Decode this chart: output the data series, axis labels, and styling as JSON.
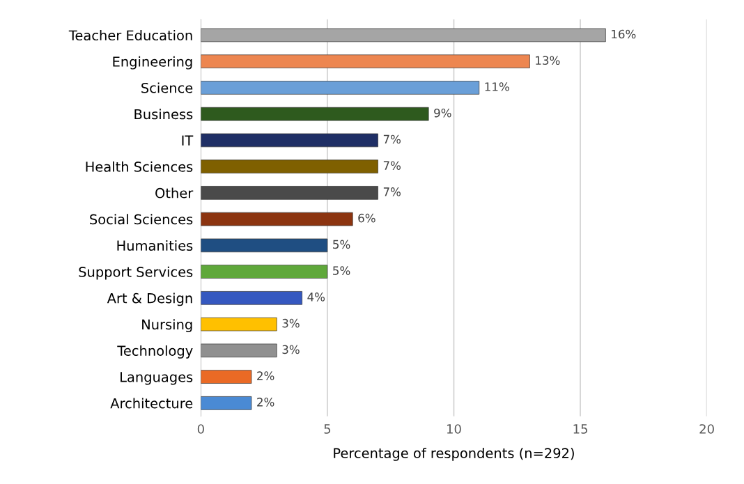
{
  "chart_data": {
    "type": "bar",
    "orientation": "horizontal",
    "xlabel": "Percentage of respondents (n=292)",
    "categories": [
      "Teacher Education",
      "Engineering",
      "Science",
      "Business",
      "IT",
      "Health Sciences",
      "Other",
      "Social Sciences",
      "Humanities",
      "Support Services",
      "Art & Design",
      "Nursing",
      "Technology",
      "Languages",
      "Architecture"
    ],
    "values": [
      16,
      13,
      11,
      9,
      7,
      7,
      7,
      6,
      5,
      5,
      4,
      3,
      3,
      2,
      2
    ],
    "colors": [
      "#a5a5a5",
      "#ed8650",
      "#6a9fd8",
      "#2e5a1e",
      "#1f2f66",
      "#7f6000",
      "#4a4a4a",
      "#8c3410",
      "#1f4e82",
      "#5fa83a",
      "#3558c0",
      "#ffc000",
      "#909090",
      "#ea6a25",
      "#4a8ad4"
    ],
    "value_labels": [
      "16%",
      "13%",
      "11%",
      "9%",
      "7%",
      "7%",
      "7%",
      "6%",
      "5%",
      "5%",
      "4%",
      "3%",
      "3%",
      "2%",
      "2%"
    ],
    "xlim": [
      0,
      20
    ],
    "xticks": [
      0,
      5,
      10,
      15,
      20
    ],
    "grid": "x",
    "legend": false
  }
}
